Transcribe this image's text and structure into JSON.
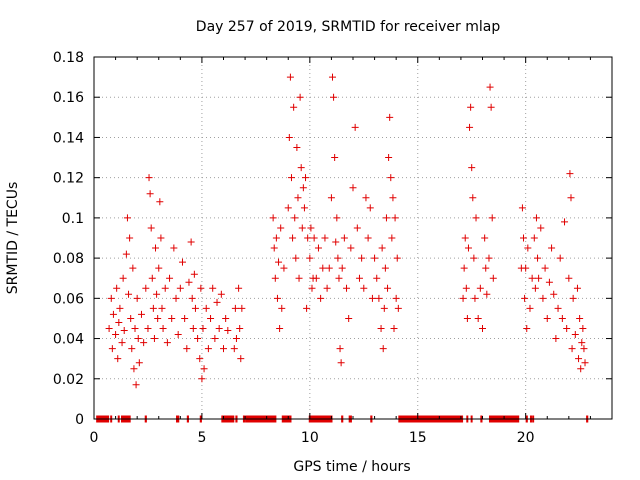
{
  "chart_data": {
    "type": "scatter",
    "title": "Day 257 of 2019, SRMTID for receiver mlap",
    "xlabel": "GPS time / hours",
    "ylabel": "SRMTID / TECUs",
    "xlim": [
      0,
      24
    ],
    "ylim": [
      0,
      0.18
    ],
    "xticks": [
      0,
      5,
      10,
      15,
      20
    ],
    "xtick_labels": [
      "0",
      "5",
      "10",
      "15",
      "20"
    ],
    "yticks": [
      0,
      0.02,
      0.04,
      0.06,
      0.08,
      0.1,
      0.12,
      0.14,
      0.16,
      0.18
    ],
    "ytick_labels": [
      "0",
      "0.02",
      "0.04",
      "0.06",
      "0.08",
      "0.1",
      "0.12",
      "0.14",
      "0.16",
      "0.18"
    ],
    "grid": true,
    "marker": "+",
    "color": "#e00000",
    "series": [
      {
        "name": "SRMTID",
        "points": [
          [
            0.7,
            0.045
          ],
          [
            0.8,
            0.06
          ],
          [
            0.85,
            0.035
          ],
          [
            0.9,
            0.052
          ],
          [
            1.0,
            0.042
          ],
          [
            1.05,
            0.065
          ],
          [
            1.1,
            0.03
          ],
          [
            1.15,
            0.048
          ],
          [
            1.2,
            0.055
          ],
          [
            1.3,
            0.038
          ],
          [
            1.35,
            0.07
          ],
          [
            1.4,
            0.044
          ],
          [
            1.5,
            0.082
          ],
          [
            1.55,
            0.1
          ],
          [
            1.6,
            0.062
          ],
          [
            1.65,
            0.09
          ],
          [
            1.7,
            0.05
          ],
          [
            1.75,
            0.035
          ],
          [
            1.8,
            0.075
          ],
          [
            1.85,
            0.025
          ],
          [
            1.9,
            0.045
          ],
          [
            1.95,
            0.017
          ],
          [
            2.0,
            0.06
          ],
          [
            2.05,
            0.04
          ],
          [
            2.1,
            0.028
          ],
          [
            2.2,
            0.052
          ],
          [
            2.3,
            0.038
          ],
          [
            2.4,
            0.065
          ],
          [
            2.5,
            0.045
          ],
          [
            2.55,
            0.12
          ],
          [
            2.6,
            0.112
          ],
          [
            2.65,
            0.095
          ],
          [
            2.7,
            0.07
          ],
          [
            2.75,
            0.055
          ],
          [
            2.8,
            0.04
          ],
          [
            2.85,
            0.085
          ],
          [
            2.9,
            0.062
          ],
          [
            2.95,
            0.05
          ],
          [
            3.0,
            0.075
          ],
          [
            3.05,
            0.108
          ],
          [
            3.1,
            0.09
          ],
          [
            3.15,
            0.055
          ],
          [
            3.2,
            0.045
          ],
          [
            3.3,
            0.065
          ],
          [
            3.4,
            0.038
          ],
          [
            3.5,
            0.07
          ],
          [
            3.6,
            0.05
          ],
          [
            3.7,
            0.085
          ],
          [
            3.8,
            0.06
          ],
          [
            3.9,
            0.042
          ],
          [
            4.0,
            0.065
          ],
          [
            4.1,
            0.078
          ],
          [
            4.2,
            0.05
          ],
          [
            4.3,
            0.035
          ],
          [
            4.4,
            0.068
          ],
          [
            4.5,
            0.088
          ],
          [
            4.55,
            0.06
          ],
          [
            4.6,
            0.045
          ],
          [
            4.65,
            0.072
          ],
          [
            4.7,
            0.055
          ],
          [
            4.8,
            0.04
          ],
          [
            4.9,
            0.03
          ],
          [
            4.95,
            0.065
          ],
          [
            5.0,
            0.02
          ],
          [
            5.05,
            0.045
          ],
          [
            5.1,
            0.025
          ],
          [
            5.2,
            0.055
          ],
          [
            5.3,
            0.035
          ],
          [
            5.4,
            0.05
          ],
          [
            5.5,
            0.065
          ],
          [
            5.6,
            0.04
          ],
          [
            5.7,
            0.058
          ],
          [
            5.8,
            0.045
          ],
          [
            5.9,
            0.062
          ],
          [
            6.0,
            0.035
          ],
          [
            6.1,
            0.05
          ],
          [
            6.2,
            0.044
          ],
          [
            6.5,
            0.035
          ],
          [
            6.55,
            0.055
          ],
          [
            6.6,
            0.04
          ],
          [
            6.7,
            0.065
          ],
          [
            6.75,
            0.045
          ],
          [
            6.8,
            0.03
          ],
          [
            6.85,
            0.055
          ],
          [
            8.3,
            0.1
          ],
          [
            8.35,
            0.085
          ],
          [
            8.4,
            0.07
          ],
          [
            8.45,
            0.09
          ],
          [
            8.5,
            0.06
          ],
          [
            8.55,
            0.078
          ],
          [
            8.6,
            0.045
          ],
          [
            8.65,
            0.095
          ],
          [
            8.7,
            0.055
          ],
          [
            8.8,
            0.075
          ],
          [
            9.0,
            0.105
          ],
          [
            9.05,
            0.14
          ],
          [
            9.1,
            0.17
          ],
          [
            9.15,
            0.12
          ],
          [
            9.2,
            0.09
          ],
          [
            9.25,
            0.155
          ],
          [
            9.3,
            0.1
          ],
          [
            9.35,
            0.08
          ],
          [
            9.4,
            0.135
          ],
          [
            9.45,
            0.11
          ],
          [
            9.5,
            0.07
          ],
          [
            9.55,
            0.16
          ],
          [
            9.6,
            0.125
          ],
          [
            9.65,
            0.095
          ],
          [
            9.7,
            0.115
          ],
          [
            9.75,
            0.105
          ],
          [
            9.8,
            0.12
          ],
          [
            9.85,
            0.055
          ],
          [
            9.9,
            0.09
          ],
          [
            10.0,
            0.08
          ],
          [
            10.05,
            0.095
          ],
          [
            10.1,
            0.065
          ],
          [
            10.15,
            0.07
          ],
          [
            10.2,
            0.09
          ],
          [
            10.3,
            0.07
          ],
          [
            10.4,
            0.085
          ],
          [
            10.5,
            0.06
          ],
          [
            10.6,
            0.075
          ],
          [
            10.7,
            0.09
          ],
          [
            10.8,
            0.065
          ],
          [
            10.9,
            0.075
          ],
          [
            11.0,
            0.11
          ],
          [
            11.05,
            0.17
          ],
          [
            11.1,
            0.16
          ],
          [
            11.15,
            0.13
          ],
          [
            11.2,
            0.088
          ],
          [
            11.25,
            0.1
          ],
          [
            11.3,
            0.08
          ],
          [
            11.35,
            0.07
          ],
          [
            11.4,
            0.035
          ],
          [
            11.45,
            0.028
          ],
          [
            11.5,
            0.075
          ],
          [
            11.6,
            0.09
          ],
          [
            11.7,
            0.065
          ],
          [
            11.8,
            0.05
          ],
          [
            11.9,
            0.085
          ],
          [
            12.0,
            0.115
          ],
          [
            12.1,
            0.145
          ],
          [
            12.2,
            0.095
          ],
          [
            12.3,
            0.07
          ],
          [
            12.4,
            0.08
          ],
          [
            12.5,
            0.065
          ],
          [
            12.6,
            0.11
          ],
          [
            12.7,
            0.09
          ],
          [
            12.8,
            0.105
          ],
          [
            12.9,
            0.06
          ],
          [
            13.0,
            0.08
          ],
          [
            13.1,
            0.07
          ],
          [
            13.2,
            0.06
          ],
          [
            13.3,
            0.045
          ],
          [
            13.35,
            0.085
          ],
          [
            13.4,
            0.035
          ],
          [
            13.45,
            0.055
          ],
          [
            13.5,
            0.075
          ],
          [
            13.55,
            0.1
          ],
          [
            13.6,
            0.065
          ],
          [
            13.65,
            0.13
          ],
          [
            13.7,
            0.15
          ],
          [
            13.75,
            0.12
          ],
          [
            13.8,
            0.09
          ],
          [
            13.85,
            0.11
          ],
          [
            13.9,
            0.045
          ],
          [
            13.95,
            0.1
          ],
          [
            14.0,
            0.06
          ],
          [
            14.05,
            0.08
          ],
          [
            14.1,
            0.055
          ],
          [
            17.1,
            0.06
          ],
          [
            17.15,
            0.075
          ],
          [
            17.2,
            0.09
          ],
          [
            17.25,
            0.065
          ],
          [
            17.3,
            0.05
          ],
          [
            17.35,
            0.085
          ],
          [
            17.4,
            0.145
          ],
          [
            17.45,
            0.155
          ],
          [
            17.5,
            0.125
          ],
          [
            17.55,
            0.11
          ],
          [
            17.6,
            0.08
          ],
          [
            17.65,
            0.06
          ],
          [
            17.7,
            0.1
          ],
          [
            17.8,
            0.05
          ],
          [
            17.9,
            0.065
          ],
          [
            18.0,
            0.045
          ],
          [
            18.1,
            0.09
          ],
          [
            18.15,
            0.075
          ],
          [
            18.2,
            0.062
          ],
          [
            18.3,
            0.08
          ],
          [
            18.35,
            0.165
          ],
          [
            18.4,
            0.155
          ],
          [
            18.45,
            0.1
          ],
          [
            18.5,
            0.07
          ],
          [
            19.8,
            0.075
          ],
          [
            19.85,
            0.105
          ],
          [
            19.9,
            0.09
          ],
          [
            19.95,
            0.06
          ],
          [
            20.0,
            0.075
          ],
          [
            20.05,
            0.045
          ],
          [
            20.1,
            0.085
          ],
          [
            20.2,
            0.055
          ],
          [
            20.3,
            0.07
          ],
          [
            20.4,
            0.09
          ],
          [
            20.45,
            0.065
          ],
          [
            20.5,
            0.1
          ],
          [
            20.55,
            0.08
          ],
          [
            20.6,
            0.07
          ],
          [
            20.7,
            0.095
          ],
          [
            20.8,
            0.06
          ],
          [
            20.9,
            0.075
          ],
          [
            21.0,
            0.05
          ],
          [
            21.1,
            0.068
          ],
          [
            21.2,
            0.085
          ],
          [
            21.3,
            0.062
          ],
          [
            21.4,
            0.04
          ],
          [
            21.5,
            0.055
          ],
          [
            21.6,
            0.08
          ],
          [
            21.7,
            0.05
          ],
          [
            21.8,
            0.098
          ],
          [
            21.9,
            0.045
          ],
          [
            22.0,
            0.07
          ],
          [
            22.05,
            0.122
          ],
          [
            22.1,
            0.11
          ],
          [
            22.15,
            0.035
          ],
          [
            22.2,
            0.06
          ],
          [
            22.3,
            0.042
          ],
          [
            22.4,
            0.065
          ],
          [
            22.45,
            0.03
          ],
          [
            22.5,
            0.05
          ],
          [
            22.55,
            0.025
          ],
          [
            22.6,
            0.038
          ],
          [
            22.65,
            0.045
          ],
          [
            22.7,
            0.035
          ],
          [
            22.75,
            0.028
          ]
        ],
        "zero_segments": [
          [
            0.1,
            0.7
          ],
          [
            0.75,
            0.8
          ],
          [
            1.1,
            1.15
          ],
          [
            1.25,
            1.7
          ],
          [
            2.35,
            2.45
          ],
          [
            3.8,
            3.95
          ],
          [
            4.3,
            4.4
          ],
          [
            4.9,
            5.0
          ],
          [
            5.9,
            6.5
          ],
          [
            6.55,
            6.65
          ],
          [
            6.9,
            7.0
          ],
          [
            7.0,
            8.45
          ],
          [
            8.7,
            9.15
          ],
          [
            9.95,
            11.05
          ],
          [
            11.45,
            11.55
          ],
          [
            11.8,
            11.95
          ],
          [
            12.8,
            12.9
          ],
          [
            14.1,
            17.1
          ],
          [
            17.25,
            17.3
          ],
          [
            17.45,
            17.5
          ],
          [
            17.9,
            18.0
          ],
          [
            18.3,
            19.7
          ],
          [
            20.0,
            20.1
          ],
          [
            20.2,
            20.25
          ],
          [
            20.3,
            20.35
          ],
          [
            22.8,
            22.9
          ]
        ]
      }
    ]
  }
}
